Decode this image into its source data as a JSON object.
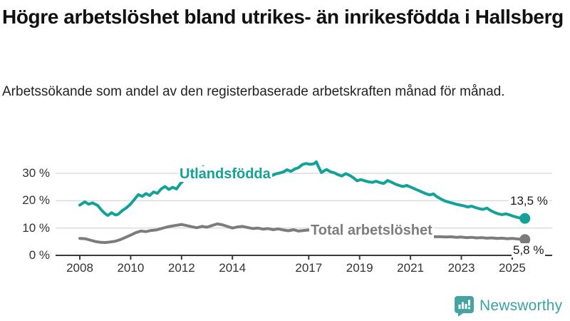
{
  "header": {
    "title": "Högre arbetslöshet bland utrikes- än inrikesfödda i Hallsberg",
    "subtitle": "Arbetssökande som andel av den registerbaserade arbetskraften månad för månad."
  },
  "footer": {
    "brand": "Newsworthy",
    "brand_color": "#3aa2a2"
  },
  "colors": {
    "series_foreign_born": "#12a298",
    "series_total": "#7c7c7c",
    "gridline": "#dcdcdc",
    "axis": "#3a3a3a",
    "text": "#333333"
  },
  "chart_data": {
    "type": "line",
    "title": "Högre arbetslöshet bland utrikes- än inrikesfödda i Hallsberg",
    "xlabel": "",
    "ylabel": "",
    "grid": "horizontal",
    "x_axis": {
      "ticks": [
        2008,
        2010,
        2012,
        2014,
        2017,
        2019,
        2021,
        2023,
        2025
      ],
      "range": [
        2007.0,
        2026.6
      ]
    },
    "y_axis": {
      "ticks": [
        0,
        10,
        20,
        30
      ],
      "tick_suffix": " %",
      "range": [
        0,
        41
      ]
    },
    "series": [
      {
        "name": "Utlandsfödda",
        "color": "#12a298",
        "end_label": "13,5 %",
        "end_value": 13.5,
        "points": [
          [
            2008.0,
            18.4
          ],
          [
            2008.2,
            19.6
          ],
          [
            2008.35,
            18.7
          ],
          [
            2008.5,
            19.2
          ],
          [
            2008.7,
            18.3
          ],
          [
            2008.85,
            16.6
          ],
          [
            2009.0,
            15.2
          ],
          [
            2009.1,
            14.6
          ],
          [
            2009.25,
            15.6
          ],
          [
            2009.4,
            14.8
          ],
          [
            2009.5,
            15.0
          ],
          [
            2009.7,
            16.6
          ],
          [
            2009.85,
            17.5
          ],
          [
            2010.0,
            18.8
          ],
          [
            2010.15,
            20.5
          ],
          [
            2010.3,
            22.2
          ],
          [
            2010.45,
            21.6
          ],
          [
            2010.6,
            22.6
          ],
          [
            2010.75,
            21.9
          ],
          [
            2010.9,
            23.2
          ],
          [
            2011.05,
            22.7
          ],
          [
            2011.2,
            24.3
          ],
          [
            2011.35,
            25.2
          ],
          [
            2011.5,
            24.1
          ],
          [
            2011.65,
            24.9
          ],
          [
            2011.8,
            24.3
          ],
          [
            2011.95,
            26.2
          ],
          [
            2012.1,
            27.6
          ],
          [
            2012.25,
            29.3
          ],
          [
            2012.4,
            30.9
          ],
          [
            2012.55,
            30.1
          ],
          [
            2012.7,
            31.5
          ],
          [
            2012.85,
            32.4
          ],
          [
            2013.0,
            31.3
          ],
          [
            2013.15,
            30.5
          ],
          [
            2013.3,
            31.1
          ],
          [
            2013.45,
            30.3
          ],
          [
            2013.6,
            30.9
          ],
          [
            2013.75,
            29.9
          ],
          [
            2013.9,
            30.7
          ],
          [
            2014.05,
            29.8
          ],
          [
            2014.2,
            30.9
          ],
          [
            2014.35,
            30.0
          ],
          [
            2014.5,
            30.8
          ],
          [
            2014.65,
            29.7
          ],
          [
            2014.8,
            30.4
          ],
          [
            2014.95,
            29.5
          ],
          [
            2015.1,
            30.2
          ],
          [
            2015.25,
            29.4
          ],
          [
            2015.4,
            30.0
          ],
          [
            2015.55,
            29.2
          ],
          [
            2015.7,
            29.8
          ],
          [
            2015.85,
            30.1
          ],
          [
            2016.0,
            30.5
          ],
          [
            2016.15,
            31.3
          ],
          [
            2016.3,
            30.7
          ],
          [
            2016.45,
            31.6
          ],
          [
            2016.6,
            32.1
          ],
          [
            2016.75,
            33.2
          ],
          [
            2016.9,
            33.6
          ],
          [
            2017.05,
            33.3
          ],
          [
            2017.2,
            33.5
          ],
          [
            2017.3,
            34.2
          ],
          [
            2017.4,
            32.1
          ],
          [
            2017.5,
            30.3
          ],
          [
            2017.6,
            30.9
          ],
          [
            2017.7,
            31.4
          ],
          [
            2017.85,
            30.6
          ],
          [
            2018.0,
            30.2
          ],
          [
            2018.15,
            29.5
          ],
          [
            2018.3,
            29.0
          ],
          [
            2018.45,
            29.9
          ],
          [
            2018.6,
            29.3
          ],
          [
            2018.75,
            28.4
          ],
          [
            2018.9,
            27.3
          ],
          [
            2019.05,
            27.7
          ],
          [
            2019.2,
            27.3
          ],
          [
            2019.35,
            26.9
          ],
          [
            2019.5,
            26.7
          ],
          [
            2019.65,
            27.1
          ],
          [
            2019.8,
            26.6
          ],
          [
            2019.95,
            26.3
          ],
          [
            2020.1,
            27.4
          ],
          [
            2020.25,
            26.8
          ],
          [
            2020.4,
            26.1
          ],
          [
            2020.55,
            25.6
          ],
          [
            2020.7,
            25.2
          ],
          [
            2020.85,
            25.6
          ],
          [
            2021.0,
            25.0
          ],
          [
            2021.15,
            24.4
          ],
          [
            2021.3,
            23.8
          ],
          [
            2021.45,
            23.2
          ],
          [
            2021.6,
            22.6
          ],
          [
            2021.75,
            22.1
          ],
          [
            2021.9,
            22.5
          ],
          [
            2022.05,
            21.4
          ],
          [
            2022.2,
            20.6
          ],
          [
            2022.35,
            19.9
          ],
          [
            2022.5,
            19.5
          ],
          [
            2022.65,
            19.1
          ],
          [
            2022.8,
            18.7
          ],
          [
            2022.95,
            18.4
          ],
          [
            2023.1,
            18.1
          ],
          [
            2023.25,
            17.7
          ],
          [
            2023.4,
            18.0
          ],
          [
            2023.55,
            17.5
          ],
          [
            2023.7,
            17.1
          ],
          [
            2023.85,
            16.8
          ],
          [
            2024.0,
            17.3
          ],
          [
            2024.15,
            16.4
          ],
          [
            2024.3,
            15.7
          ],
          [
            2024.45,
            15.2
          ],
          [
            2024.6,
            14.9
          ],
          [
            2024.75,
            15.2
          ],
          [
            2024.9,
            14.8
          ],
          [
            2025.05,
            14.3
          ],
          [
            2025.2,
            13.9
          ],
          [
            2025.35,
            13.6
          ],
          [
            2025.5,
            13.5
          ]
        ]
      },
      {
        "name": "Total arbetslöshet",
        "color": "#7c7c7c",
        "end_label": "5,8 %",
        "end_value": 5.8,
        "points": [
          [
            2008.0,
            6.2
          ],
          [
            2008.2,
            6.1
          ],
          [
            2008.4,
            5.6
          ],
          [
            2008.6,
            5.1
          ],
          [
            2008.8,
            4.8
          ],
          [
            2009.0,
            4.7
          ],
          [
            2009.2,
            4.9
          ],
          [
            2009.4,
            5.2
          ],
          [
            2009.6,
            5.8
          ],
          [
            2009.8,
            6.6
          ],
          [
            2010.0,
            7.4
          ],
          [
            2010.2,
            8.3
          ],
          [
            2010.4,
            8.9
          ],
          [
            2010.6,
            8.7
          ],
          [
            2010.8,
            9.1
          ],
          [
            2011.0,
            9.3
          ],
          [
            2011.2,
            9.8
          ],
          [
            2011.4,
            10.3
          ],
          [
            2011.6,
            10.7
          ],
          [
            2011.8,
            11.0
          ],
          [
            2012.0,
            11.3
          ],
          [
            2012.2,
            10.9
          ],
          [
            2012.4,
            10.5
          ],
          [
            2012.6,
            10.1
          ],
          [
            2012.8,
            10.6
          ],
          [
            2013.0,
            10.3
          ],
          [
            2013.2,
            10.9
          ],
          [
            2013.4,
            11.5
          ],
          [
            2013.6,
            11.2
          ],
          [
            2013.8,
            10.6
          ],
          [
            2014.0,
            10.0
          ],
          [
            2014.2,
            10.4
          ],
          [
            2014.4,
            10.6
          ],
          [
            2014.6,
            10.2
          ],
          [
            2014.8,
            9.8
          ],
          [
            2015.0,
            10.0
          ],
          [
            2015.2,
            9.6
          ],
          [
            2015.4,
            9.8
          ],
          [
            2015.6,
            9.4
          ],
          [
            2015.8,
            9.7
          ],
          [
            2016.0,
            9.3
          ],
          [
            2016.2,
            9.0
          ],
          [
            2016.4,
            9.4
          ],
          [
            2016.6,
            8.9
          ],
          [
            2016.8,
            9.1
          ],
          [
            2017.0,
            9.3
          ],
          [
            2017.2,
            9.0
          ],
          [
            2017.4,
            8.8
          ],
          [
            2017.6,
            9.0
          ],
          [
            2017.8,
            8.7
          ],
          [
            2018.0,
            8.5
          ],
          [
            2018.2,
            8.3
          ],
          [
            2018.4,
            8.1
          ],
          [
            2018.6,
            8.0
          ],
          [
            2018.8,
            7.8
          ],
          [
            2019.0,
            7.7
          ],
          [
            2019.2,
            7.6
          ],
          [
            2019.4,
            7.5
          ],
          [
            2019.6,
            7.4
          ],
          [
            2019.8,
            7.5
          ],
          [
            2020.0,
            7.8
          ],
          [
            2020.2,
            8.0
          ],
          [
            2020.4,
            7.9
          ],
          [
            2020.6,
            7.7
          ],
          [
            2020.8,
            7.5
          ],
          [
            2021.0,
            7.3
          ],
          [
            2021.2,
            7.1
          ],
          [
            2021.4,
            7.0
          ],
          [
            2021.6,
            6.9
          ],
          [
            2021.8,
            6.9
          ],
          [
            2022.0,
            6.8
          ],
          [
            2022.2,
            6.8
          ],
          [
            2022.4,
            6.7
          ],
          [
            2022.6,
            6.8
          ],
          [
            2022.8,
            6.6
          ],
          [
            2023.0,
            6.7
          ],
          [
            2023.2,
            6.5
          ],
          [
            2023.4,
            6.6
          ],
          [
            2023.6,
            6.4
          ],
          [
            2023.8,
            6.5
          ],
          [
            2024.0,
            6.3
          ],
          [
            2024.2,
            6.4
          ],
          [
            2024.4,
            6.2
          ],
          [
            2024.6,
            6.3
          ],
          [
            2024.8,
            6.1
          ],
          [
            2025.0,
            6.2
          ],
          [
            2025.2,
            6.0
          ],
          [
            2025.4,
            5.9
          ],
          [
            2025.5,
            5.8
          ]
        ]
      }
    ]
  }
}
